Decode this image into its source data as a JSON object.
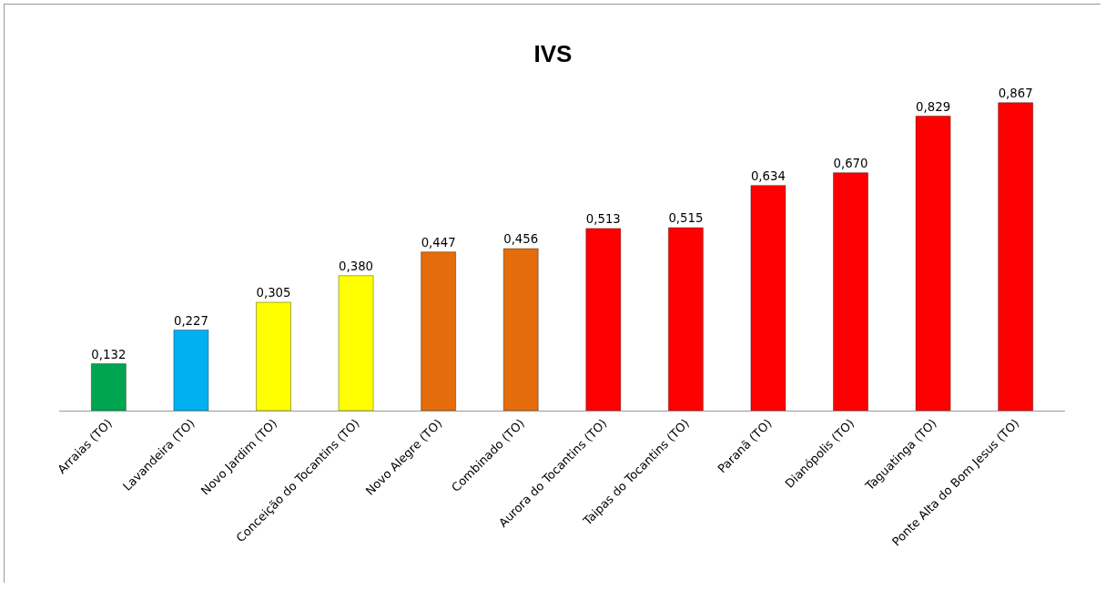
{
  "chart_data": {
    "type": "bar",
    "title": "IVS",
    "categories": [
      "Arraias (TO)",
      "Lavandeira (TO)",
      "Novo Jardim (TO)",
      "Conceição do Tocantins (TO)",
      "Novo Alegre (TO)",
      "Combinado (TO)",
      "Aurora do Tocantins (TO)",
      "Taipas do Tocantins (TO)",
      "Paranã (TO)",
      "Dianópolis (TO)",
      "Taguatinga (TO)",
      "Ponte Alta do Bom Jesus (TO)"
    ],
    "values": [
      0.132,
      0.227,
      0.305,
      0.38,
      0.447,
      0.456,
      0.513,
      0.515,
      0.634,
      0.67,
      0.829,
      0.867
    ],
    "value_labels": [
      "0,132",
      "0,227",
      "0,305",
      "0,380",
      "0,447",
      "0,456",
      "0,513",
      "0,515",
      "0,634",
      "0,670",
      "0,829",
      "0,867"
    ],
    "colors": [
      "#00a550",
      "#00b0f0",
      "#ffff00",
      "#ffff00",
      "#e46c0a",
      "#e46c0a",
      "#ff0000",
      "#ff0000",
      "#ff0000",
      "#ff0000",
      "#ff0000",
      "#ff0000"
    ],
    "tick_labels": "x"
  }
}
